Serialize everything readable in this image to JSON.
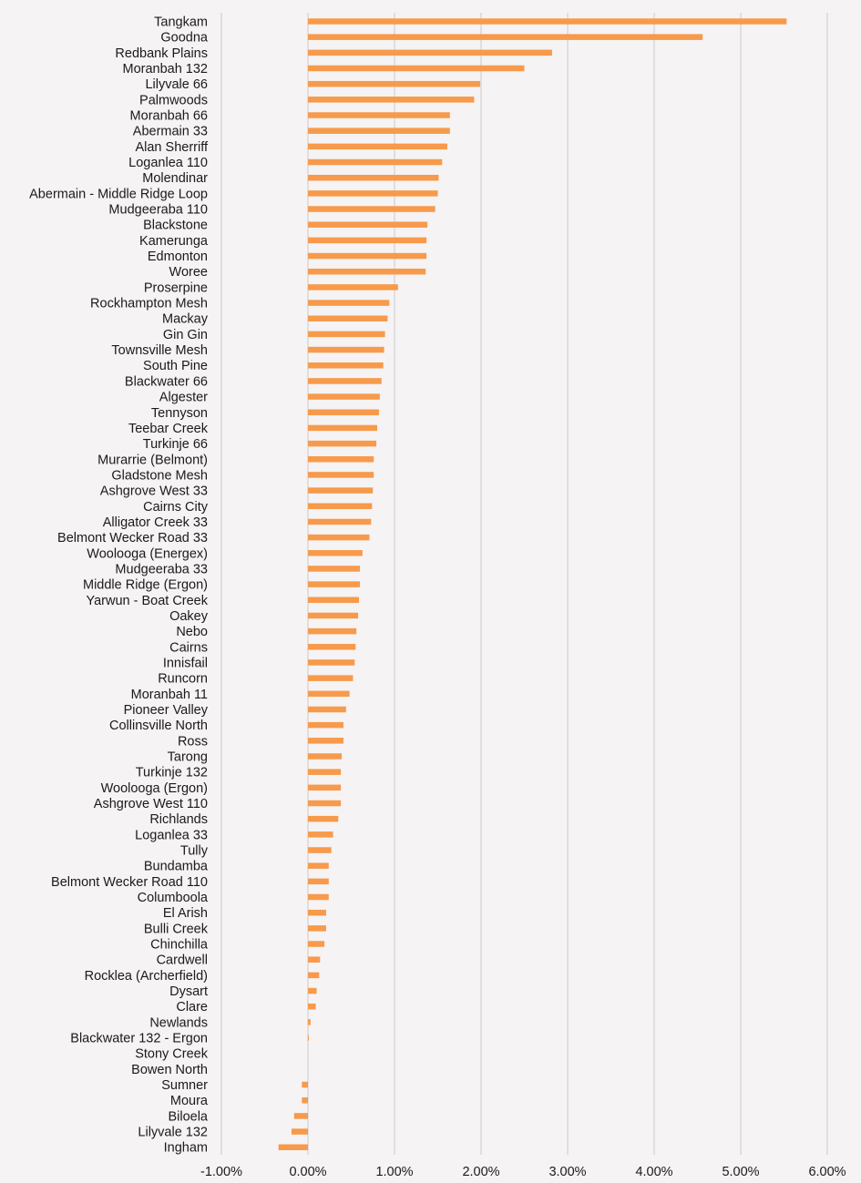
{
  "chart_data": {
    "type": "bar",
    "orientation": "horizontal",
    "title": "",
    "xlabel": "",
    "ylabel": "",
    "xlim": [
      -0.01,
      0.06
    ],
    "x_ticks": [
      -0.01,
      0.0,
      0.01,
      0.02,
      0.03,
      0.04,
      0.05,
      0.06
    ],
    "x_tick_labels": [
      "-1.00%",
      "0.00%",
      "1.00%",
      "2.00%",
      "3.00%",
      "4.00%",
      "5.00%",
      "6.00%"
    ],
    "grid": "vertical",
    "bar_color": "#f79a4b",
    "categories": [
      "Tangkam",
      "Goodna",
      "Redbank Plains",
      "Moranbah 132",
      "Lilyvale 66",
      "Palmwoods",
      "Moranbah 66",
      "Abermain 33",
      "Alan Sherriff",
      "Loganlea 110",
      "Molendinar",
      "Abermain - Middle Ridge Loop",
      "Mudgeeraba 110",
      "Blackstone",
      "Kamerunga",
      "Edmonton",
      "Woree",
      "Proserpine",
      "Rockhampton Mesh",
      "Mackay",
      "Gin Gin",
      "Townsville Mesh",
      "South Pine",
      "Blackwater 66",
      "Algester",
      "Tennyson",
      "Teebar Creek",
      "Turkinje 66",
      "Murarrie (Belmont)",
      "Gladstone Mesh",
      "Ashgrove West 33",
      "Cairns City",
      "Alligator Creek 33",
      "Belmont Wecker Road 33",
      "Woolooga (Energex)",
      "Mudgeeraba 33",
      "Middle Ridge (Ergon)",
      "Yarwun - Boat Creek",
      "Oakey",
      "Nebo",
      "Cairns",
      "Innisfail",
      "Runcorn",
      "Moranbah 11",
      "Pioneer Valley",
      "Collinsville North",
      "Ross",
      "Tarong",
      "Turkinje 132",
      "Woolooga (Ergon)",
      "Ashgrove West 110",
      "Richlands",
      "Loganlea 33",
      "Tully",
      "Bundamba",
      "Belmont Wecker Road 110",
      "Columboola",
      "El Arish",
      "Bulli Creek",
      "Chinchilla",
      "Cardwell",
      "Rocklea (Archerfield)",
      "Dysart",
      "Clare",
      "Newlands",
      "Blackwater 132 - Ergon",
      "Stony Creek",
      "Bowen North",
      "Sumner",
      "Moura",
      "Biloela",
      "Lilyvale 132",
      "Ingham"
    ],
    "values": [
      0.0553,
      0.0456,
      0.0282,
      0.025,
      0.0199,
      0.0192,
      0.0164,
      0.0164,
      0.0161,
      0.0155,
      0.0151,
      0.015,
      0.0147,
      0.0138,
      0.0137,
      0.0137,
      0.0136,
      0.0104,
      0.0094,
      0.0092,
      0.0089,
      0.0088,
      0.0087,
      0.0085,
      0.0083,
      0.0082,
      0.008,
      0.0079,
      0.0076,
      0.0076,
      0.0075,
      0.0074,
      0.0073,
      0.0071,
      0.0063,
      0.006,
      0.006,
      0.0059,
      0.0058,
      0.0056,
      0.0055,
      0.0054,
      0.0052,
      0.0048,
      0.0044,
      0.0041,
      0.0041,
      0.0039,
      0.0038,
      0.0038,
      0.0038,
      0.0035,
      0.0029,
      0.0027,
      0.0024,
      0.0024,
      0.0024,
      0.0021,
      0.0021,
      0.0019,
      0.0014,
      0.0013,
      0.001,
      0.0009,
      0.0003,
      0.0001,
      0.0,
      0.0,
      -0.0007,
      -0.0007,
      -0.0016,
      -0.0019,
      -0.0034
    ]
  }
}
